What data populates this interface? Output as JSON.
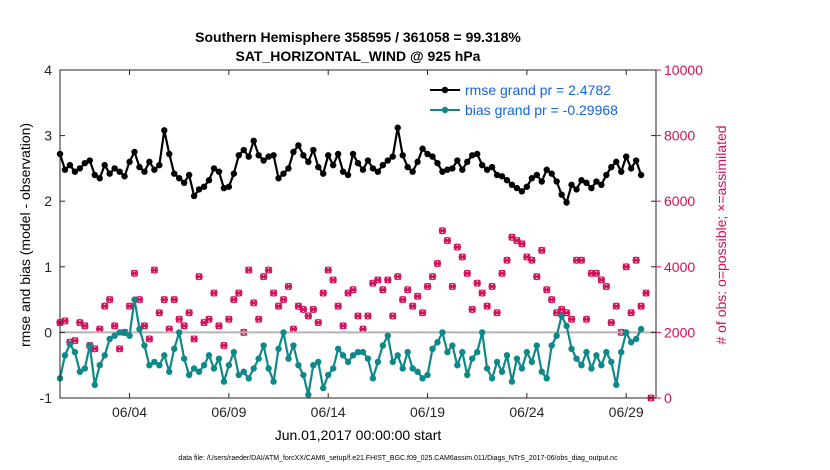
{
  "chart_data": {
    "type": "line",
    "title_line1": "Southern Hemisphere 358595 / 361058 = 99.318%",
    "title_line2": "SAT_HORIZONTAL_WIND @ 925 hPa",
    "ylabel_left": "rmse and bias (model - observation)",
    "ylabel_right": "# of obs: o=possible; ×=assimilated",
    "xlabel": "Jun.01,2017 00:00:00 start",
    "footer": "data file: /Users/raeder/DAI/ATM_forcXX/CAM6_setup/f.e21.FHIST_BGC.f09_025.CAM6assim.011/Diags_NTrS_2017-06/obs_diag_output.nc",
    "ylim_left": [
      -1,
      4
    ],
    "ylim_right": [
      0,
      10000
    ],
    "yticks_left": [
      "-1",
      "0",
      "1",
      "2",
      "3",
      "4"
    ],
    "yticks_right": [
      "0",
      "2000",
      "4000",
      "6000",
      "8000",
      "10000"
    ],
    "xlim": [
      0.5,
      30.5
    ],
    "xticks": [
      {
        "day": 4,
        "label": "06/04"
      },
      {
        "day": 9,
        "label": "06/09"
      },
      {
        "day": 14,
        "label": "06/14"
      },
      {
        "day": 19,
        "label": "06/19"
      },
      {
        "day": 24,
        "label": "06/24"
      },
      {
        "day": 29,
        "label": "06/29"
      }
    ],
    "x_start": 0.5,
    "x_step": 0.25,
    "legend": [
      {
        "label": "rmse grand pr = 2.4782",
        "color": "#000000"
      },
      {
        "label": "bias grand pr = -0.29968",
        "color": "#0e8888"
      }
    ],
    "series": [
      {
        "name": "rmse grand pr = 2.4782",
        "color": "#000000",
        "values": [
          2.72,
          2.48,
          2.55,
          2.45,
          2.5,
          2.58,
          2.62,
          2.4,
          2.35,
          2.55,
          2.42,
          2.5,
          2.45,
          2.38,
          2.6,
          2.75,
          2.52,
          2.45,
          2.6,
          2.48,
          2.55,
          3.08,
          2.72,
          2.42,
          2.35,
          2.28,
          2.4,
          2.08,
          2.18,
          2.22,
          2.32,
          2.5,
          2.45,
          2.2,
          2.22,
          2.42,
          2.7,
          2.78,
          2.68,
          2.92,
          2.7,
          2.62,
          2.68,
          2.7,
          2.35,
          2.42,
          2.5,
          2.75,
          2.85,
          2.7,
          2.6,
          2.78,
          2.52,
          2.42,
          2.7,
          2.55,
          2.72,
          2.45,
          2.4,
          2.72,
          2.58,
          2.48,
          2.62,
          2.5,
          2.45,
          2.55,
          2.62,
          2.68,
          3.12,
          2.7,
          2.52,
          2.45,
          2.6,
          2.8,
          2.72,
          2.68,
          2.58,
          2.45,
          2.48,
          2.5,
          2.62,
          2.48,
          2.6,
          2.7,
          2.72,
          2.55,
          2.48,
          2.52,
          2.4,
          2.38,
          2.32,
          2.25,
          2.2,
          2.15,
          2.22,
          2.35,
          2.4,
          2.3,
          2.48,
          2.42,
          2.3,
          2.1,
          1.98,
          2.25,
          2.18,
          2.32,
          2.28,
          2.2,
          2.3,
          2.25,
          2.4,
          2.52,
          2.6,
          2.45,
          2.68,
          2.5,
          2.62,
          2.4
        ]
      },
      {
        "name": "bias grand pr = -0.29968",
        "color": "#0e8888",
        "values": [
          -0.7,
          -0.35,
          -0.18,
          -0.3,
          -0.6,
          -0.55,
          -0.2,
          -0.8,
          -0.5,
          -0.35,
          -0.1,
          -0.05,
          0.0,
          0.0,
          -0.05,
          0.5,
          0.05,
          -0.2,
          -0.5,
          -0.45,
          -0.5,
          -0.35,
          -0.6,
          -0.25,
          0.0,
          -0.4,
          -0.65,
          -0.55,
          -0.6,
          -0.5,
          -0.35,
          -0.55,
          -0.4,
          -0.75,
          -0.5,
          -0.3,
          -0.65,
          -0.6,
          -0.7,
          -0.55,
          -0.4,
          -0.2,
          -0.55,
          -0.75,
          -0.25,
          0.0,
          -0.4,
          -0.2,
          -0.5,
          -0.65,
          -0.95,
          -0.5,
          -0.45,
          -0.85,
          -0.65,
          -0.55,
          -0.25,
          -0.35,
          -0.45,
          -0.35,
          -0.3,
          -0.3,
          -0.4,
          -0.7,
          -0.45,
          -0.2,
          -0.05,
          -0.45,
          -0.35,
          -0.55,
          -0.3,
          -0.55,
          -0.6,
          -0.7,
          -0.65,
          -0.25,
          -0.15,
          0.0,
          -0.3,
          -0.2,
          -0.5,
          -0.3,
          -0.65,
          -0.4,
          -0.3,
          0.0,
          -0.55,
          -0.7,
          -0.45,
          -0.6,
          -0.35,
          -0.75,
          -0.4,
          -0.55,
          -0.3,
          -0.45,
          -0.2,
          -0.6,
          -0.7,
          -0.2,
          -0.05,
          0.25,
          0.1,
          -0.25,
          -0.4,
          -0.5,
          -0.3,
          -0.55,
          -0.35,
          -0.5,
          -0.3,
          -0.45,
          -0.8,
          -0.3,
          0.0,
          -0.15,
          -0.1,
          0.05
        ]
      }
    ],
    "obs_counts": {
      "name": "# of obs",
      "color": "#d0105a",
      "values": [
        2300,
        2350,
        1700,
        1750,
        2300,
        2200,
        1600,
        1500,
        2100,
        2800,
        3000,
        2200,
        1500,
        2000,
        2800,
        3800,
        3000,
        2200,
        1800,
        3900,
        2600,
        3000,
        2100,
        3000,
        2400,
        2200,
        2600,
        1800,
        3700,
        2300,
        2400,
        3200,
        2200,
        1600,
        2400,
        3000,
        3200,
        2000,
        3900,
        2900,
        2400,
        3700,
        3900,
        3200,
        2800,
        3000,
        3400,
        2100,
        2800,
        2700,
        2500,
        2700,
        2300,
        3200,
        3900,
        3600,
        2800,
        2200,
        3200,
        3300,
        2500,
        2100,
        2500,
        3500,
        3600,
        3300,
        3600,
        2500,
        3700,
        3000,
        3300,
        2800,
        3100,
        2600,
        3400,
        3700,
        4100,
        5100,
        4800,
        3400,
        4600,
        4300,
        3800,
        2700,
        3500,
        3200,
        2800,
        3400,
        2600,
        3800,
        4200,
        4900,
        4800,
        4700,
        4300,
        4200,
        3700,
        4500,
        3300,
        3000,
        2600,
        2700,
        2600,
        2400,
        4200,
        4200,
        2400,
        3800,
        3800,
        3600,
        3400,
        2300,
        2800,
        2000,
        4000,
        2600,
        4200,
        2800,
        3200,
        0
      ]
    }
  }
}
